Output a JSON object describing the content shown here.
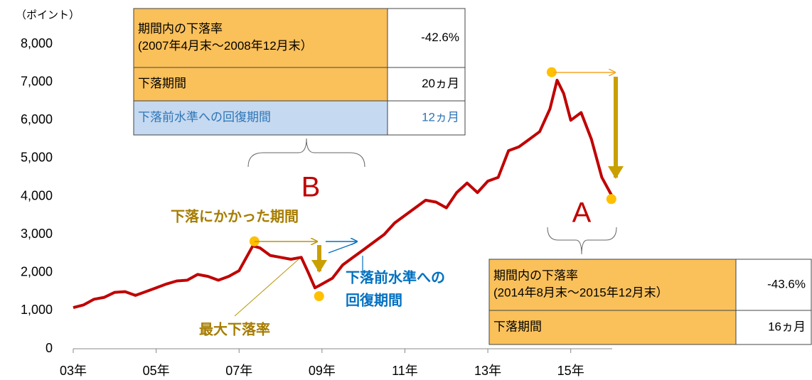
{
  "chart_data": {
    "type": "line",
    "ylabel": "（ポイント）",
    "xlim": [
      2003,
      2016
    ],
    "xticks": [
      {
        "value": 2003,
        "label": "03年"
      },
      {
        "value": 2005,
        "label": "05年"
      },
      {
        "value": 2007,
        "label": "07年"
      },
      {
        "value": 2009,
        "label": "09年"
      },
      {
        "value": 2011,
        "label": "11年"
      },
      {
        "value": 2013,
        "label": "13年"
      },
      {
        "value": 2015,
        "label": "15年"
      }
    ],
    "ylim": [
      0,
      8000
    ],
    "yticks": [
      0,
      {
        "value": 1000,
        "label": "1,000"
      },
      {
        "value": 2000,
        "label": "2,000"
      },
      {
        "value": 3000,
        "label": "3,000"
      },
      {
        "value": 4000,
        "label": "4,000"
      },
      {
        "value": 5000,
        "label": "5,000"
      },
      {
        "value": 6000,
        "label": "6,000"
      },
      {
        "value": 7000,
        "label": "7,000"
      },
      {
        "value": 8000,
        "label": "8,000"
      }
    ],
    "color": "#c00000",
    "x": [
      2003.0,
      2003.25,
      2003.5,
      2003.75,
      2004.0,
      2004.25,
      2004.5,
      2004.75,
      2005.0,
      2005.25,
      2005.5,
      2005.75,
      2006.0,
      2006.25,
      2006.5,
      2006.75,
      2007.0,
      2007.33,
      2007.5,
      2007.75,
      2008.0,
      2008.25,
      2008.5,
      2008.67,
      2008.83,
      2008.92,
      2009.25,
      2009.5,
      2009.75,
      2010.0,
      2010.25,
      2010.5,
      2010.75,
      2011.0,
      2011.25,
      2011.5,
      2011.75,
      2012.0,
      2012.25,
      2012.5,
      2012.75,
      2013.0,
      2013.25,
      2013.5,
      2013.75,
      2014.0,
      2014.25,
      2014.5,
      2014.67,
      2014.83,
      2015.0,
      2015.25,
      2015.5,
      2015.75,
      2016.0
    ],
    "values": [
      1080,
      1150,
      1300,
      1350,
      1480,
      1500,
      1400,
      1500,
      1600,
      1700,
      1780,
      1800,
      1950,
      1900,
      1800,
      1900,
      2050,
      2700,
      2650,
      2450,
      2400,
      2350,
      2400,
      2000,
      1600,
      1650,
      1850,
      2200,
      2400,
      2600,
      2800,
      3000,
      3300,
      3500,
      3700,
      3900,
      3850,
      3700,
      4100,
      4350,
      4100,
      4400,
      4500,
      5200,
      5300,
      5500,
      5700,
      6300,
      7050,
      6700,
      6000,
      6200,
      5500,
      4500,
      4000
    ],
    "markers": [
      {
        "x": 2007.37,
        "y": 2820
      },
      {
        "x": 2008.93,
        "y": 1380
      },
      {
        "x": 2014.54,
        "y": 7260
      },
      {
        "x": 2015.98,
        "y": 3930
      }
    ],
    "marker_color": "#ffc000",
    "annotations": {
      "label_b": "B",
      "label_a": "A",
      "decline_period": "下落にかかった期間",
      "max_drawdown": "最大下落率",
      "recovery": [
        "下落前水準への",
        "回復期間"
      ]
    },
    "table_b": [
      [
        [
          "期間内の下落率",
          "(2007年4月末～2008年12月末）"
        ],
        "-42.6%"
      ],
      [
        [
          "下落期間"
        ],
        "20ヵ月"
      ],
      [
        [
          "下落前水準への回復期間"
        ],
        "12ヵ月"
      ]
    ],
    "table_a": [
      [
        [
          "期間内の下落率",
          "(2014年8月末～2015年12月末）"
        ],
        "-43.6%"
      ],
      [
        [
          "下落期間"
        ],
        "16ヵ月"
      ]
    ]
  }
}
